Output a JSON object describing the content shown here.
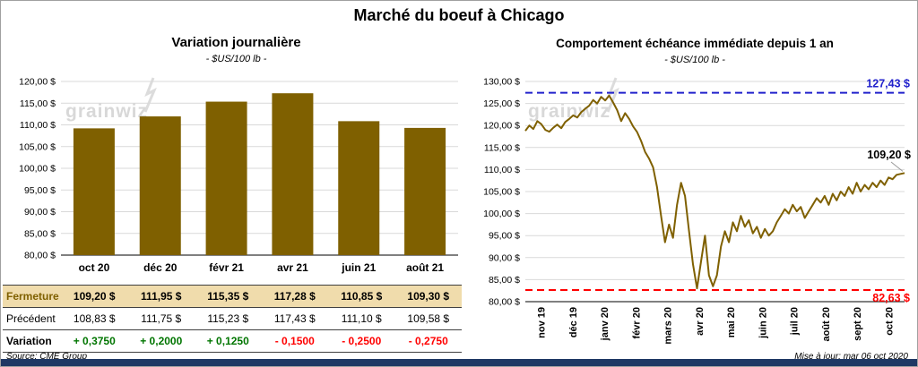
{
  "page": {
    "main_title": "Marché du boeuf à Chicago",
    "source": "Source: CME Group",
    "updated": "Mise à jour: mar 06 oct 2020",
    "watermark": "grainwiz"
  },
  "colors": {
    "bar": "#7F6000",
    "line": "#7F6000",
    "high": "#2222CC",
    "low": "#FF0000",
    "positive": "#007500",
    "negative": "#FF0000",
    "highlight_bg": "#F0DCAC",
    "highlight_text": "#7F6000",
    "grid": "#D9D9D9",
    "axis": "#000000",
    "strip": "#1F3864",
    "callout": "#999999"
  },
  "chart_data": [
    {
      "type": "bar",
      "title": "Variation journalière",
      "subtitle": "- $US/100 lb -",
      "categories": [
        "oct 20",
        "déc 20",
        "févr 21",
        "avr 21",
        "juin 21",
        "août 21"
      ],
      "values": [
        109.2,
        111.95,
        115.35,
        117.28,
        110.85,
        109.3
      ],
      "ylim": [
        80,
        120
      ],
      "ytick_step": 5,
      "ytick_labels": [
        "120,00 $",
        "115,00 $",
        "110,00 $",
        "105,00 $",
        "100,00 $",
        "95,00 $",
        "90,00 $",
        "85,00 $",
        "80,00 $"
      ]
    },
    {
      "type": "line",
      "title": "Comportement échéance immédiate depuis 1 an",
      "subtitle": "- $US/100 lb -",
      "x_labels": [
        "nov 19",
        "déc 19",
        "janv 20",
        "févr 20",
        "mars 20",
        "avr 20",
        "mai 20",
        "juin 20",
        "juil 20",
        "août 20",
        "sept 20",
        "oct 20"
      ],
      "ylim": [
        80,
        130
      ],
      "ytick_step": 5,
      "ytick_labels": [
        "130,00 $",
        "125,00 $",
        "120,00 $",
        "115,00 $",
        "110,00 $",
        "105,00 $",
        "100,00 $",
        "95,00 $",
        "90,00 $",
        "85,00 $",
        "80,00 $"
      ],
      "values": [
        118.8,
        120.0,
        119.2,
        121.0,
        120.3,
        119.0,
        118.6,
        119.5,
        120.2,
        119.4,
        120.8,
        121.5,
        122.3,
        121.8,
        123.0,
        123.8,
        124.5,
        125.8,
        125.0,
        126.5,
        125.7,
        126.8,
        125.2,
        123.5,
        121.0,
        122.8,
        121.5,
        119.8,
        118.5,
        116.5,
        114.0,
        112.5,
        110.5,
        106.0,
        99.5,
        93.5,
        97.5,
        94.5,
        102.0,
        107.0,
        104.0,
        96.0,
        88.5,
        83.0,
        89.0,
        95.0,
        86.0,
        83.5,
        86.0,
        92.5,
        96.0,
        93.5,
        98.0,
        96.0,
        99.5,
        97.0,
        98.5,
        95.5,
        97.0,
        94.5,
        96.5,
        95.0,
        96.0,
        98.0,
        99.5,
        101.0,
        100.0,
        102.0,
        100.5,
        101.5,
        99.0,
        100.5,
        102.0,
        103.5,
        102.5,
        104.0,
        102.0,
        104.5,
        103.0,
        105.0,
        104.0,
        106.0,
        104.5,
        107.0,
        105.0,
        106.5,
        105.5,
        107.0,
        106.0,
        107.5,
        106.5,
        108.2,
        107.8,
        108.8,
        109.0,
        109.2
      ],
      "high": {
        "value": 127.43,
        "label": "127,43 $"
      },
      "low": {
        "value": 82.63,
        "label": "82,63 $"
      },
      "last": {
        "value": 109.2,
        "label": "109,20 $"
      }
    }
  ],
  "table": {
    "rows": [
      {
        "label": "Fermeture",
        "highlight": true,
        "label_bold": true,
        "values_bold": true,
        "signed": false,
        "values": [
          "109,20 $",
          "111,95 $",
          "115,35 $",
          "117,28 $",
          "110,85 $",
          "109,30 $"
        ]
      },
      {
        "label": "Précédent",
        "highlight": false,
        "label_bold": false,
        "values_bold": false,
        "signed": false,
        "values": [
          "108,83 $",
          "111,75 $",
          "115,23 $",
          "117,43 $",
          "111,10 $",
          "109,58 $"
        ]
      },
      {
        "label": "Variation",
        "highlight": false,
        "label_bold": true,
        "values_bold": true,
        "signed": true,
        "values": [
          "+ 0,3750",
          "+ 0,2000",
          "+ 0,1250",
          "- 0,1500",
          "- 0,2500",
          "- 0,2750"
        ]
      }
    ]
  }
}
